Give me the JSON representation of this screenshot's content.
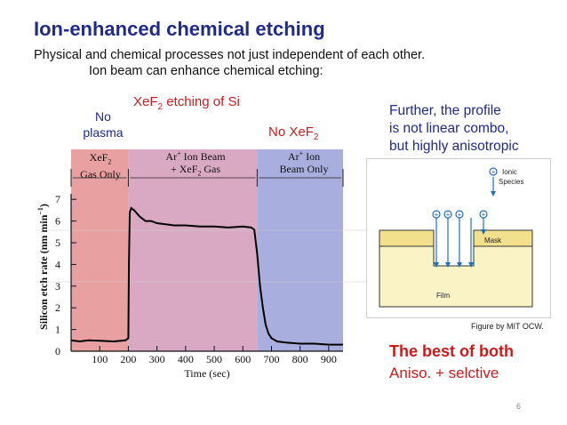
{
  "slide": {
    "title": "Ion-enhanced chemical etching",
    "subtitle_line1": "Physical and chemical processes not just independent of each other.",
    "subtitle_line2": "Ion beam can enhance chemical etching:",
    "page_number": "6"
  },
  "chart_labels": {
    "caption_main": "etching of Si",
    "xef2_base": "XeF",
    "xef2_sub": "2",
    "no_plasma_line1": "No",
    "no_plasma_line2": "plasma",
    "no_xef2_prefix": "No XeF",
    "no_xef2_sub": "2",
    "region1_line1_base": "XeF",
    "region1_line1_sub": "2",
    "region1_line2": "Gas Only",
    "region2_line1": "Ar",
    "region2_line1_sup": "+",
    "region2_line1_rest": " Ion Beam",
    "region2_line2_pre": "+ XeF",
    "region2_line2_sub": "2",
    "region2_line2_post": " Gas",
    "region3_line1": "Ar",
    "region3_line1_sup": "+",
    "region3_line1_rest": " Ion",
    "region3_line2": "Beam  Only",
    "ylabel": "Silicon etch rate (nm min",
    "ylabel_sup": "−1",
    "ylabel_close": ")",
    "xlabel": "Time (sec)"
  },
  "chart_data": {
    "type": "line",
    "xlabel": "Time (sec)",
    "ylabel": "Silicon etch rate (nm min−1)",
    "xlim": [
      0,
      950
    ],
    "ylim": [
      0,
      7.5
    ],
    "x_ticks": [
      100,
      200,
      300,
      400,
      500,
      600,
      700,
      800,
      900
    ],
    "y_ticks": [
      0,
      1,
      2,
      3,
      4,
      5,
      6,
      7
    ],
    "region_boundaries": [
      0,
      200,
      650,
      950
    ],
    "region_colors": [
      "#e8a0a0",
      "#d9a9c4",
      "#a8aede"
    ],
    "series": [
      {
        "x": [
          0,
          30,
          60,
          100,
          150,
          190,
          200,
          202,
          205,
          210,
          220,
          240,
          260,
          280,
          300,
          330,
          360,
          400,
          450,
          500,
          550,
          600,
          630,
          640,
          650,
          660,
          670,
          680,
          690,
          700,
          720,
          750,
          800,
          850,
          900,
          950
        ],
        "y": [
          0.5,
          0.45,
          0.5,
          0.48,
          0.45,
          0.5,
          0.6,
          4.0,
          6.4,
          6.6,
          6.5,
          6.2,
          6.0,
          6.0,
          5.9,
          5.85,
          5.8,
          5.8,
          5.75,
          5.75,
          5.7,
          5.75,
          5.7,
          5.6,
          4.5,
          3.0,
          2.0,
          1.2,
          0.8,
          0.6,
          0.45,
          0.4,
          0.35,
          0.35,
          0.3,
          0.3
        ]
      }
    ]
  },
  "right_panel": {
    "further_line1": "Further, the profile",
    "further_line2": "is not linear combo,",
    "further_line3": "but highly anisotropic",
    "best_line1": "The best of both",
    "best_line2": "Aniso. + selctive"
  },
  "figure": {
    "ionic_line1": "Ionic",
    "ionic_line2": "Species",
    "mask_label": "Mask",
    "film_label": "Film",
    "credit": "Figure by MIT OCW."
  }
}
